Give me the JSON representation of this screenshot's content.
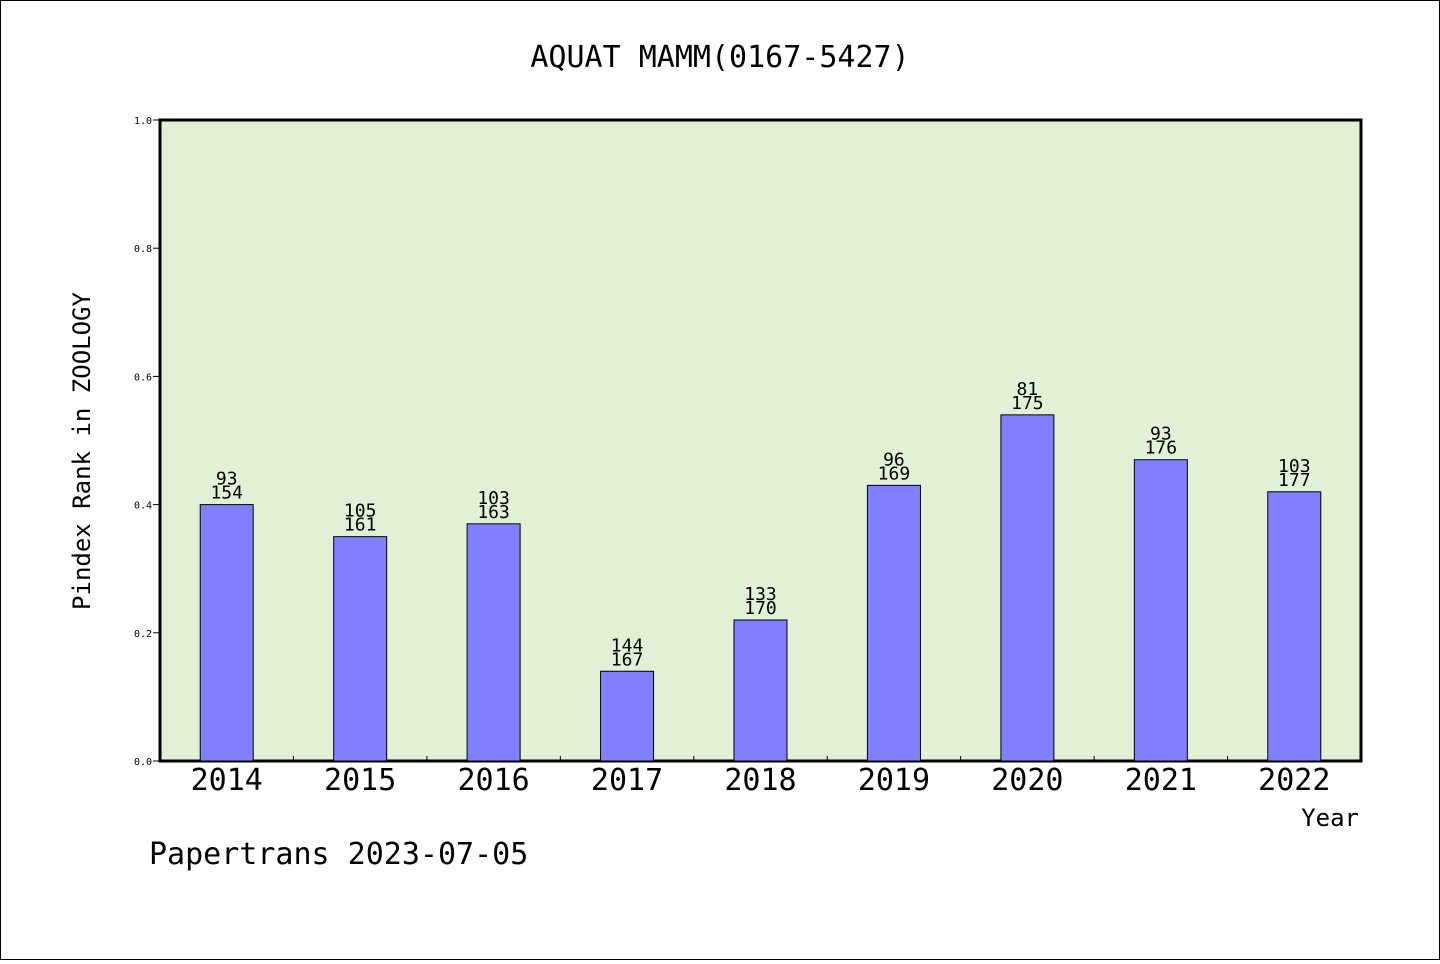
{
  "chart_data": {
    "type": "bar",
    "title": "AQUAT MAMM(0167-5427)",
    "xlabel": "Year",
    "ylabel": "Pindex Rank in ZOOLOGY",
    "ylim": [
      0,
      1.0
    ],
    "yticks": [
      "0.0",
      "0.2",
      "0.4",
      "0.6",
      "0.8",
      "1.0"
    ],
    "categories": [
      "2014",
      "2015",
      "2016",
      "2017",
      "2018",
      "2019",
      "2020",
      "2021",
      "2022"
    ],
    "values": [
      0.4,
      0.35,
      0.37,
      0.14,
      0.22,
      0.43,
      0.54,
      0.47,
      0.42
    ],
    "rank_labels": [
      "93",
      "105",
      "103",
      "144",
      "133",
      "96",
      "81",
      "93",
      "103"
    ],
    "total_labels": [
      "154",
      "161",
      "163",
      "167",
      "170",
      "169",
      "175",
      "176",
      "177"
    ],
    "grid": false,
    "colors": {
      "bar_fill": "#8080ff",
      "plot_background": "#e2f0d6",
      "axis": "#000000"
    }
  },
  "footer": "Papertrans 2023-07-05"
}
